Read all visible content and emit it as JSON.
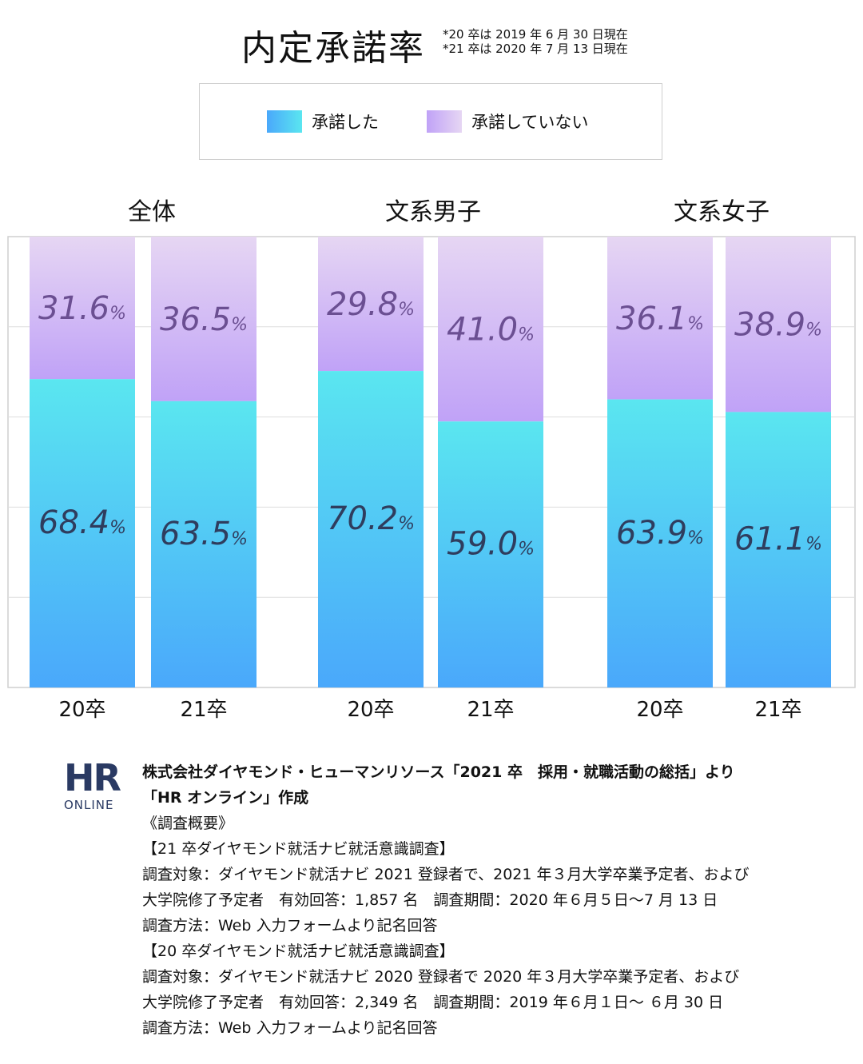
{
  "title": "内定承諾率",
  "notes": [
    "*20 卒は 2019 年 6 月 30 日現在",
    "*21 卒は 2020 年 7 月 13 日現在"
  ],
  "legend": {
    "accepted": "承諾した",
    "not_accepted": "承諾していない"
  },
  "colors": {
    "accepted_top": "#5ae6f0",
    "accepted_bottom": "#4aa8fb",
    "not_accepted_top": "#e6d6f3",
    "not_accepted_bottom": "#c0a2f7",
    "label_accepted": "#2f3d5e",
    "label_not_accepted": "#6b4f92",
    "logo": "#2a3a63"
  },
  "chart_data": {
    "type": "bar",
    "stacked": true,
    "percent_suffix": "%",
    "ylim": [
      0,
      100
    ],
    "groups": [
      {
        "title": "全体",
        "categories": [
          "20卒",
          "21卒"
        ]
      },
      {
        "title": "文系男子",
        "categories": [
          "20卒",
          "21卒"
        ]
      },
      {
        "title": "文系女子",
        "categories": [
          "20卒",
          "21卒"
        ]
      }
    ],
    "series": [
      {
        "name": "承諾した",
        "values": [
          68.4,
          63.5,
          70.2,
          59.0,
          63.9,
          61.1
        ],
        "labels": [
          "68.4",
          "63.5",
          "70.2",
          "59.0",
          "63.9",
          "61.1"
        ]
      },
      {
        "name": "承諾していない",
        "values": [
          31.6,
          36.5,
          29.8,
          41.0,
          36.1,
          38.9
        ],
        "labels": [
          "31.6",
          "36.5",
          "29.8",
          "41.0",
          "36.1",
          "38.9"
        ]
      }
    ],
    "grid": true
  },
  "footer": {
    "logo_main": "HR",
    "logo_sub": "ONLINE",
    "lines": [
      "株式会社ダイヤモンド・ヒューマンリソース「2021 卒　採用・就職活動の総括」より",
      "「HR オンライン」作成",
      "《調査概要》",
      "【21 卒ダイヤモンド就活ナビ就活意識調査】",
      "調査対象：ダイヤモンド就活ナビ 2021 登録者で、2021 年３月大学卒業予定者、および",
      "大学院修了予定者　有効回答：1,857 名　調査期間：2020 年６月５日〜7 月 13 日",
      "調査方法：Web 入力フォームより記名回答",
      "【20 卒ダイヤモンド就活ナビ就活意識調査】",
      "調査対象：ダイヤモンド就活ナビ 2020 登録者で 2020 年３月大学卒業予定者、および",
      "大学院修了予定者　有効回答：2,349 名　調査期間：2019 年６月１日〜 ６月 30 日",
      "調査方法：Web 入力フォームより記名回答"
    ]
  }
}
